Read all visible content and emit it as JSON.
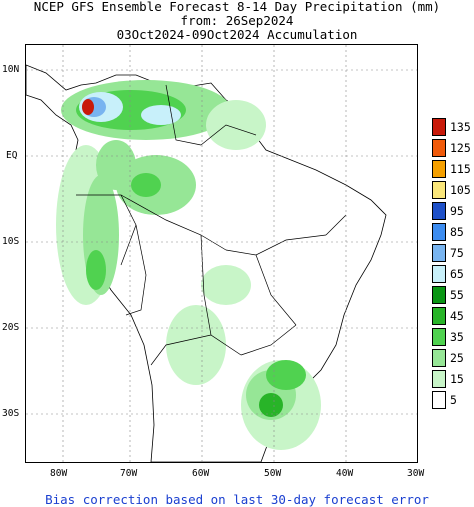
{
  "title": {
    "line1": "NCEP GFS Ensemble Forecast 8-14 Day Precipitation (mm)",
    "line2": "from: 26Sep2024",
    "line3": "03Oct2024-09Oct2024 Accumulation"
  },
  "axes": {
    "lat_labels": [
      "10N",
      "EQ",
      "10S",
      "20S",
      "30S"
    ],
    "lon_labels": [
      "80W",
      "70W",
      "60W",
      "50W",
      "40W",
      "30W"
    ]
  },
  "legend": {
    "items": [
      {
        "label": "135",
        "color": "#c81a0a"
      },
      {
        "label": "125",
        "color": "#f05a0a"
      },
      {
        "label": "115",
        "color": "#f5a000"
      },
      {
        "label": "105",
        "color": "#fae67a"
      },
      {
        "label": "95",
        "color": "#1e50c8"
      },
      {
        "label": "85",
        "color": "#3c8cf0"
      },
      {
        "label": "75",
        "color": "#78b4f0"
      },
      {
        "label": "65",
        "color": "#c8f0fa"
      },
      {
        "label": "55",
        "color": "#0a9614"
      },
      {
        "label": "45",
        "color": "#28b428"
      },
      {
        "label": "35",
        "color": "#50d250"
      },
      {
        "label": "25",
        "color": "#96e696"
      },
      {
        "label": "15",
        "color": "#c8f5c8"
      },
      {
        "label": "5",
        "color": "#ffffff"
      }
    ]
  },
  "footer": "Bias correction based on last 30-day forecast error"
}
